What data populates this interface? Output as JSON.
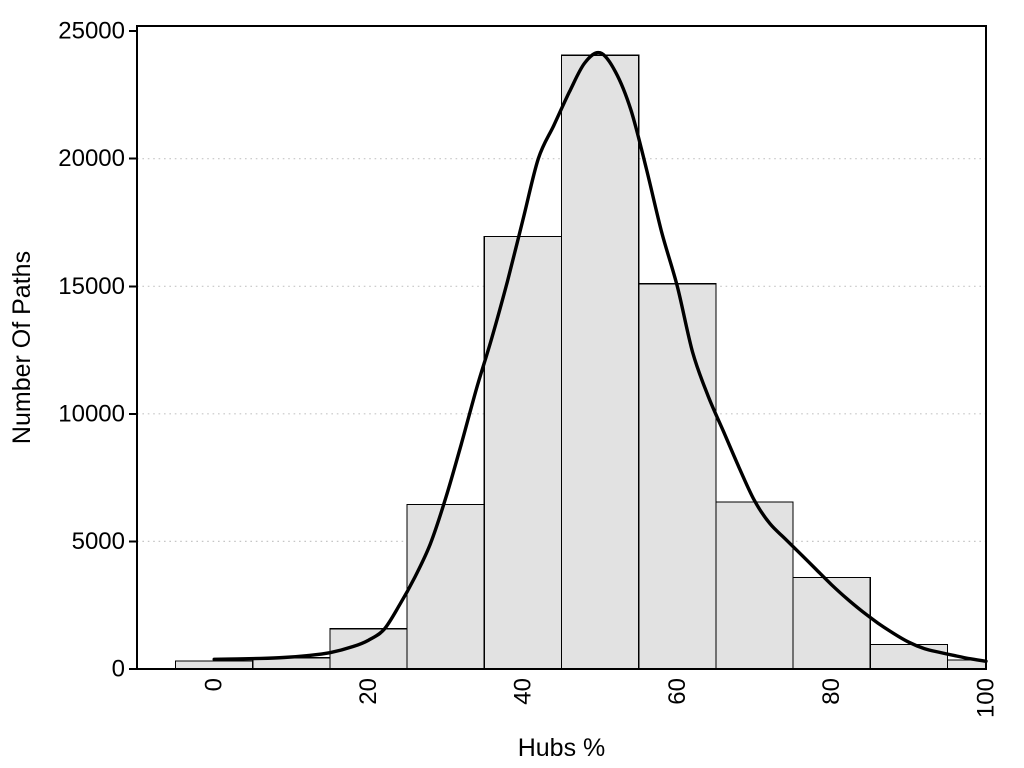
{
  "page": {
    "background": "#ffffff",
    "description": "Histogram of Hubs % with kernel density curve overlay"
  },
  "chart_data": {
    "type": "bar",
    "subtype": "histogram-with-density-curve-overlay",
    "title": "",
    "xlabel": "Hubs %",
    "ylabel": "Number Of Paths",
    "xlim": [
      -10,
      100
    ],
    "ylim": [
      0,
      25200
    ],
    "x_ticks": [
      0,
      20,
      40,
      60,
      80,
      100
    ],
    "y_ticks": [
      0,
      5000,
      10000,
      15000,
      20000,
      25000
    ],
    "x_tick_rotation_degrees": -90,
    "grid": {
      "style": "dotted",
      "horizontal_at": [
        5000,
        10000,
        15000,
        20000
      ]
    },
    "legend": null,
    "histogram": {
      "bin_width": 10,
      "bin_edges": [
        -5,
        5,
        15,
        25,
        35,
        45,
        55,
        65,
        75,
        85,
        95,
        105
      ],
      "bin_centers": [
        0,
        10,
        20,
        30,
        40,
        50,
        60,
        70,
        80,
        90,
        100
      ],
      "counts": [
        310,
        440,
        1580,
        6450,
        16950,
        24050,
        15100,
        6550,
        3590,
        960,
        350
      ],
      "clipped_at_x": 100
    },
    "density_curve": {
      "x": [
        0,
        3,
        6,
        9,
        12,
        15,
        18,
        20,
        22,
        24,
        26,
        28,
        30,
        32,
        34,
        36,
        38,
        40,
        42,
        44,
        46,
        48,
        50,
        52,
        54,
        56,
        58,
        60,
        62,
        64,
        66,
        68,
        70,
        72,
        74,
        76,
        78,
        80,
        82,
        84,
        86,
        88,
        90,
        92,
        94,
        96,
        98,
        100
      ],
      "y": [
        380,
        395,
        415,
        450,
        520,
        640,
        880,
        1130,
        1550,
        2500,
        3600,
        4900,
        6700,
        8800,
        11000,
        13000,
        15200,
        17600,
        20000,
        21300,
        22600,
        23750,
        24150,
        23400,
        21900,
        19600,
        17100,
        15000,
        12400,
        10700,
        9300,
        7900,
        6600,
        5700,
        5100,
        4500,
        3900,
        3300,
        2750,
        2250,
        1800,
        1400,
        1050,
        800,
        650,
        520,
        400,
        300
      ],
      "peak": {
        "x": 50,
        "y": 24150
      }
    },
    "colors": {
      "bar_fill": "#e2e2e2",
      "bar_stroke": "#000000",
      "curve": "#000000",
      "grid": "#c6c6c6",
      "axis": "#000000",
      "text": "#000000",
      "background": "#ffffff"
    }
  }
}
